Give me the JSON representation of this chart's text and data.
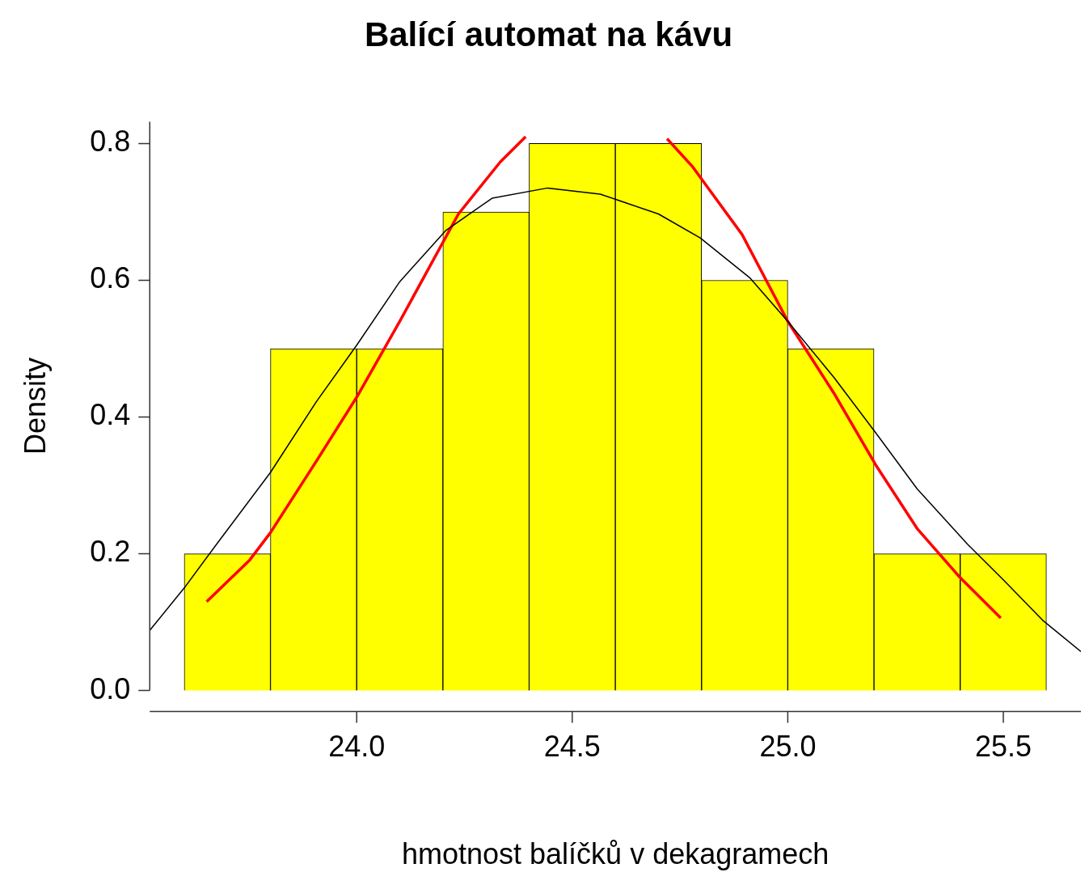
{
  "chart_data": {
    "type": "histogram",
    "title": "Balící automat na kávu",
    "xlabel": "hmotnost balíčků v dekagramech",
    "ylabel": "Density",
    "bins": [
      23.6,
      23.8,
      24.0,
      24.2,
      24.4,
      24.6,
      24.8,
      25.0,
      25.2,
      25.4,
      25.6
    ],
    "values": [
      0.2,
      0.5,
      0.5,
      0.7,
      0.8,
      0.8,
      0.6,
      0.5,
      0.2,
      0.2
    ],
    "color": "#ffff00",
    "series": [
      {
        "type": "line",
        "color": "#000000",
        "x": [
          23.52,
          23.6,
          23.675,
          23.8,
          23.907,
          24.0,
          24.1,
          24.207,
          24.314,
          24.443,
          24.565,
          24.7,
          24.797,
          24.913,
          25.0,
          25.107,
          25.204,
          25.3,
          25.417,
          25.5,
          25.591,
          25.68
        ],
        "values": [
          0.088,
          0.15,
          0.214,
          0.319,
          0.423,
          0.505,
          0.598,
          0.673,
          0.72,
          0.735,
          0.726,
          0.697,
          0.662,
          0.603,
          0.54,
          0.458,
          0.377,
          0.295,
          0.214,
          0.162,
          0.103,
          0.057
        ]
      },
      {
        "type": "line",
        "color": "#ff0000",
        "x": [
          23.652,
          23.752,
          23.8,
          23.907,
          24.0,
          24.1,
          24.236,
          24.333,
          24.392,
          24.55,
          24.72,
          24.778,
          24.894,
          25.0,
          25.107,
          25.204,
          25.3,
          25.397,
          25.494
        ],
        "values": [
          0.13,
          0.191,
          0.231,
          0.336,
          0.429,
          0.54,
          0.697,
          0.773,
          0.81,
          null,
          0.807,
          0.767,
          0.667,
          0.54,
          0.435,
          0.33,
          0.237,
          0.167,
          0.106
        ]
      }
    ],
    "xlim": [
      23.52,
      25.68
    ],
    "ylim": [
      0,
      0.832
    ],
    "xticks": [
      {
        "value": 24,
        "label": "24.0"
      },
      {
        "value": 24.5,
        "label": "24.5"
      },
      {
        "value": 25,
        "label": "25.0"
      },
      {
        "value": 25.5,
        "label": "25.5"
      }
    ],
    "yticks": [
      {
        "value": 0,
        "label": "0.0"
      },
      {
        "value": 0.2,
        "label": "0.2"
      },
      {
        "value": 0.4,
        "label": "0.4"
      },
      {
        "value": 0.6,
        "label": "0.6"
      },
      {
        "value": 0.8,
        "label": "0.8"
      }
    ],
    "grid": false,
    "legend": false,
    "marker": "none",
    "line_style": "solid"
  }
}
